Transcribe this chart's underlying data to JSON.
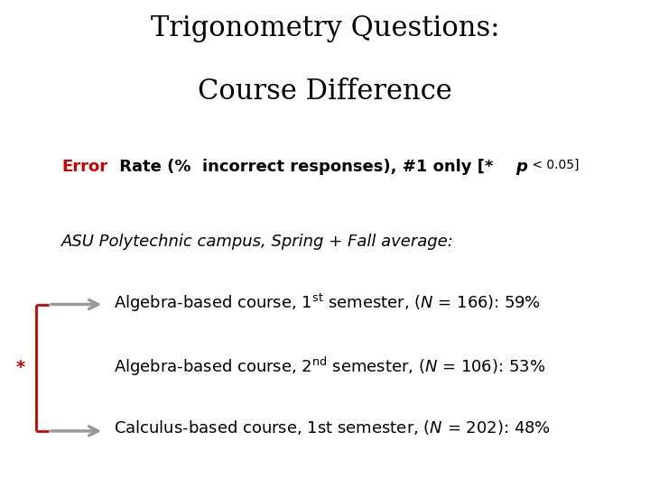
{
  "title_line1": "Trigonometry Questions:",
  "title_line2": "Course Difference",
  "campus_label": "ASU Polytechnic campus, Spring + Fall average:",
  "background_color": "#ffffff",
  "title_color": "#000000",
  "red_color": "#cc0000",
  "gray_color": "#999999",
  "title_fontsize": 22,
  "subtitle_fontsize": 13,
  "body_fontsize": 13,
  "campus_fontsize": 13
}
